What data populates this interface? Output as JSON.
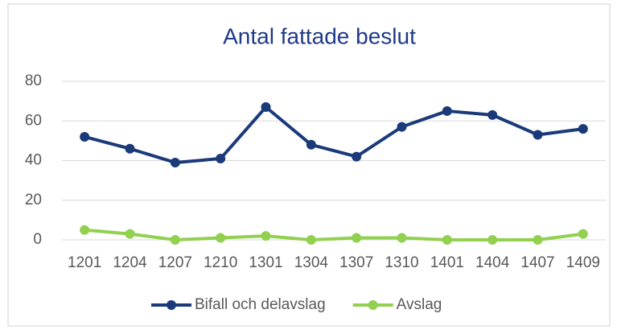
{
  "chart_data": {
    "type": "line",
    "title": "Antal fattade beslut",
    "categories": [
      "1201",
      "1204",
      "1207",
      "1210",
      "1301",
      "1304",
      "1307",
      "1310",
      "1401",
      "1404",
      "1407",
      "1409"
    ],
    "series": [
      {
        "name": "Bifall och delavslag",
        "color": "#1b3a7a",
        "values": [
          52,
          46,
          39,
          41,
          67,
          48,
          42,
          57,
          65,
          63,
          53,
          56
        ]
      },
      {
        "name": "Avslag",
        "color": "#92d050",
        "values": [
          5,
          3,
          0,
          1,
          2,
          0,
          1,
          1,
          0,
          0,
          0,
          3
        ]
      }
    ],
    "ylim": [
      0,
      80
    ],
    "yticks": [
      0,
      20,
      40,
      60,
      80
    ],
    "grid": true,
    "legend": "bottom"
  }
}
